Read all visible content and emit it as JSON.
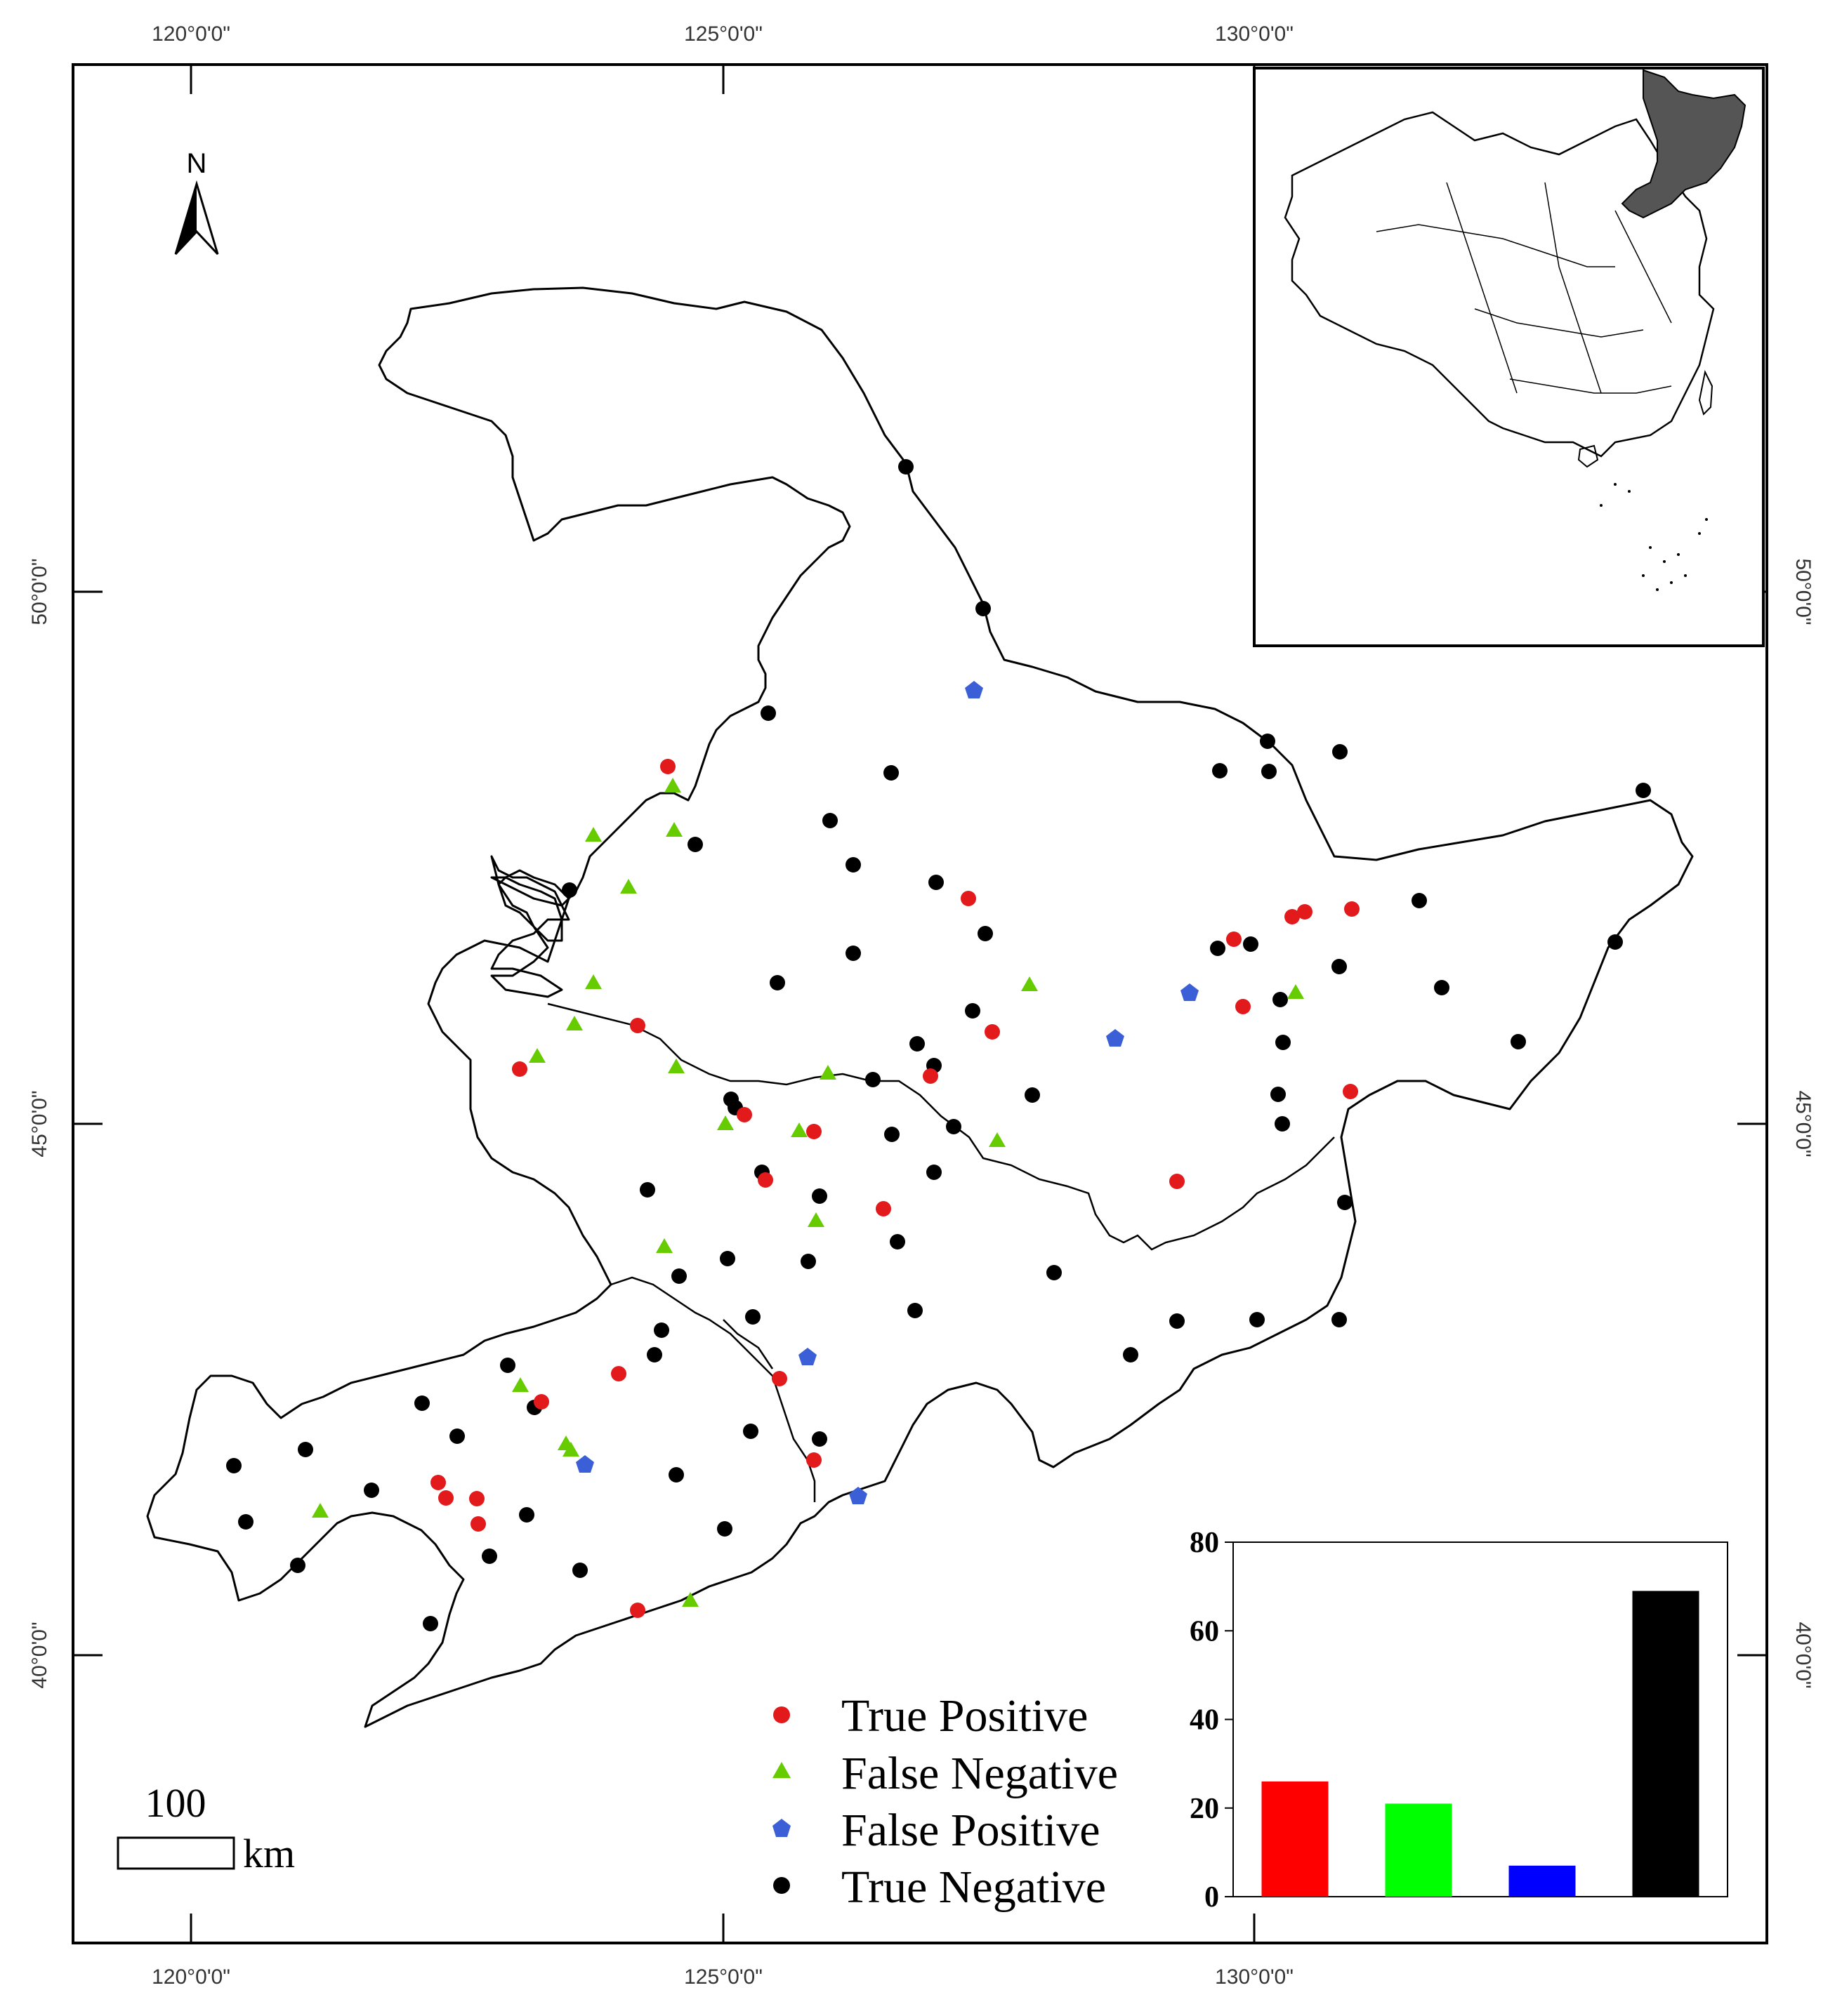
{
  "map": {
    "axes": {
      "top_lon": [
        "120°0'0\"",
        "125°0'0\"",
        "130°0'0\""
      ],
      "bottom_lon": [
        "120°0'0\"",
        "125°0'0\"",
        "130°0'0\""
      ],
      "left_lat": [
        "50°0'0\"",
        "45°0'0\"",
        "40°0'0\""
      ],
      "right_lat": [
        "50°0'0\"",
        "45°0'0\"",
        "40°0'0\""
      ]
    },
    "north_label": "N",
    "scale": {
      "value": "100",
      "unit": "km"
    },
    "legend": [
      {
        "label": "True Positive",
        "color": "#e31a1c",
        "symbol": "circle"
      },
      {
        "label": "False Negative",
        "color": "#66cc00",
        "symbol": "triangle"
      },
      {
        "label": "False Positive",
        "color": "#3a5fd6",
        "symbol": "pentagon"
      },
      {
        "label": "True Negative",
        "color": "#000000",
        "symbol": "circle"
      }
    ],
    "inset": {
      "highlight_color": "#555555"
    }
  },
  "chart_data": {
    "type": "bar",
    "categories": [
      "True Positive",
      "False Negative",
      "False Positive",
      "True Negative"
    ],
    "values": [
      26,
      21,
      7,
      69
    ],
    "colors": [
      "#ff0000",
      "#00ff00",
      "#0000ff",
      "#000000"
    ],
    "ylim": [
      0,
      80
    ],
    "yticks": [
      "80",
      "60",
      "40",
      "20",
      "0"
    ],
    "title": "",
    "xlabel": "",
    "ylabel": ""
  }
}
